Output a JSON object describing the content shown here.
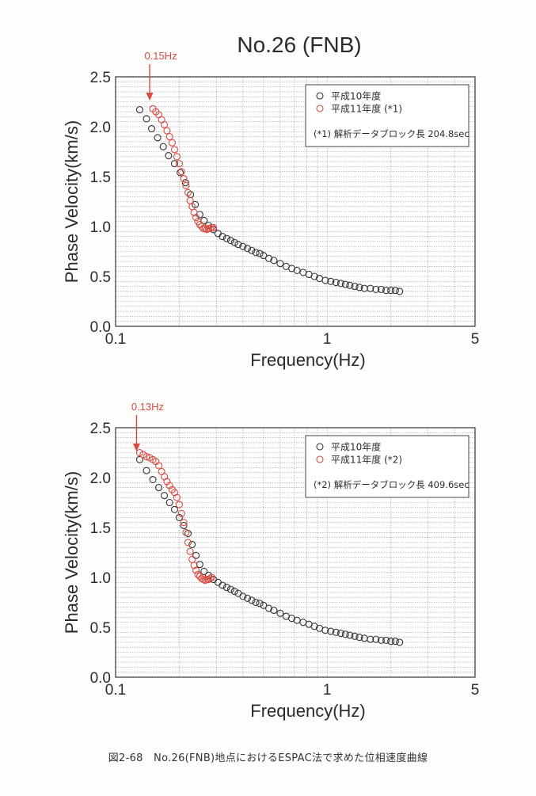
{
  "title": "No.26 (FNB)",
  "caption": "図2-68　No.26(FNB)地点におけるESPAC法で求めた位相速度曲線",
  "colors": {
    "series_1": "#333333",
    "series_2": "#d94a3f",
    "arrow": "#d94a3f"
  },
  "chart_data": [
    {
      "type": "scatter",
      "xscale": "log",
      "xlim": [
        0.1,
        5
      ],
      "ylim": [
        0.0,
        2.5
      ],
      "xlabel": "Frequency(Hz)",
      "ylabel": "Phase Velocity(km/s)",
      "xticks": [
        0.1,
        1,
        5
      ],
      "xtick_labels": [
        "0.1",
        "1",
        "5"
      ],
      "yticks": [
        0.0,
        0.5,
        1.0,
        1.5,
        2.0,
        2.5
      ],
      "ytick_labels": [
        "0.0",
        "0.5",
        "1.0",
        "1.5",
        "2.0",
        "2.5"
      ],
      "grid": true,
      "legend_position": "top-right",
      "note": "(*1) 解析データブロック長 204.8sec",
      "annotation": {
        "text": "0.15Hz",
        "x": 0.15
      },
      "series": [
        {
          "name": "平成10年度",
          "color": "#333333",
          "x": [
            0.13,
            0.14,
            0.148,
            0.158,
            0.168,
            0.178,
            0.19,
            0.202,
            0.214,
            0.226,
            0.238,
            0.25,
            0.262,
            0.275,
            0.29,
            0.305,
            0.32,
            0.335,
            0.35,
            0.365,
            0.38,
            0.4,
            0.42,
            0.44,
            0.46,
            0.48,
            0.5,
            0.53,
            0.56,
            0.6,
            0.64,
            0.68,
            0.72,
            0.77,
            0.82,
            0.87,
            0.92,
            0.98,
            1.04,
            1.1,
            1.16,
            1.22,
            1.28,
            1.35,
            1.42,
            1.5,
            1.6,
            1.7,
            1.8,
            1.9,
            2.0,
            2.1,
            2.2
          ],
          "y": [
            2.17,
            2.08,
            1.98,
            1.89,
            1.8,
            1.71,
            1.63,
            1.54,
            1.44,
            1.32,
            1.22,
            1.12,
            1.06,
            1.01,
            0.97,
            0.93,
            0.9,
            0.88,
            0.86,
            0.84,
            0.82,
            0.8,
            0.78,
            0.76,
            0.74,
            0.73,
            0.71,
            0.68,
            0.66,
            0.63,
            0.6,
            0.58,
            0.56,
            0.54,
            0.52,
            0.5,
            0.48,
            0.46,
            0.45,
            0.44,
            0.43,
            0.42,
            0.41,
            0.4,
            0.39,
            0.38,
            0.38,
            0.37,
            0.37,
            0.36,
            0.36,
            0.36,
            0.35
          ]
        },
        {
          "name": "平成11年度 (*1)",
          "color": "#d94a3f",
          "x": [
            0.15,
            0.155,
            0.16,
            0.165,
            0.17,
            0.175,
            0.18,
            0.185,
            0.19,
            0.195,
            0.2,
            0.205,
            0.21,
            0.215,
            0.22,
            0.225,
            0.23,
            0.235,
            0.24,
            0.245,
            0.25,
            0.255,
            0.26,
            0.265,
            0.27,
            0.275,
            0.28,
            0.285,
            0.29
          ],
          "y": [
            2.18,
            2.15,
            2.12,
            2.07,
            2.02,
            1.96,
            1.9,
            1.84,
            1.77,
            1.7,
            1.63,
            1.55,
            1.48,
            1.41,
            1.34,
            1.26,
            1.2,
            1.14,
            1.09,
            1.05,
            1.02,
            1.0,
            0.98,
            0.98,
            0.97,
            0.98,
            0.98,
            0.99,
            0.99
          ]
        }
      ]
    },
    {
      "type": "scatter",
      "xscale": "log",
      "xlim": [
        0.1,
        5
      ],
      "ylim": [
        0.0,
        2.5
      ],
      "xlabel": "Frequency(Hz)",
      "ylabel": "Phase Velocity(km/s)",
      "xticks": [
        0.1,
        1,
        5
      ],
      "xtick_labels": [
        "0.1",
        "1",
        "5"
      ],
      "yticks": [
        0.0,
        0.5,
        1.0,
        1.5,
        2.0,
        2.5
      ],
      "ytick_labels": [
        "0.0",
        "0.5",
        "1.0",
        "1.5",
        "2.0",
        "2.5"
      ],
      "grid": true,
      "legend_position": "top-right",
      "note": "(*2) 解析データブロック長 409.6sec",
      "annotation": {
        "text": "0.13Hz",
        "x": 0.13
      },
      "series": [
        {
          "name": "平成10年度",
          "color": "#333333",
          "x": [
            0.13,
            0.14,
            0.15,
            0.16,
            0.17,
            0.18,
            0.19,
            0.2,
            0.21,
            0.22,
            0.23,
            0.24,
            0.25,
            0.262,
            0.275,
            0.29,
            0.305,
            0.32,
            0.335,
            0.35,
            0.365,
            0.38,
            0.4,
            0.42,
            0.44,
            0.46,
            0.48,
            0.5,
            0.53,
            0.56,
            0.6,
            0.64,
            0.68,
            0.72,
            0.77,
            0.82,
            0.87,
            0.92,
            0.98,
            1.04,
            1.1,
            1.16,
            1.22,
            1.28,
            1.35,
            1.42,
            1.5,
            1.6,
            1.7,
            1.8,
            1.9,
            2.0,
            2.1,
            2.2
          ],
          "y": [
            2.18,
            2.07,
            1.98,
            1.9,
            1.82,
            1.75,
            1.68,
            1.6,
            1.52,
            1.44,
            1.33,
            1.22,
            1.13,
            1.06,
            1.02,
            0.98,
            0.95,
            0.92,
            0.9,
            0.88,
            0.86,
            0.84,
            0.81,
            0.79,
            0.77,
            0.75,
            0.74,
            0.72,
            0.69,
            0.67,
            0.64,
            0.61,
            0.59,
            0.57,
            0.55,
            0.53,
            0.51,
            0.49,
            0.47,
            0.46,
            0.45,
            0.44,
            0.43,
            0.42,
            0.41,
            0.4,
            0.39,
            0.38,
            0.38,
            0.37,
            0.37,
            0.36,
            0.36,
            0.35
          ]
        },
        {
          "name": "平成11年度 (*2)",
          "color": "#d94a3f",
          "x": [
            0.13,
            0.135,
            0.14,
            0.145,
            0.15,
            0.155,
            0.16,
            0.165,
            0.17,
            0.175,
            0.18,
            0.185,
            0.19,
            0.195,
            0.2,
            0.205,
            0.21,
            0.215,
            0.22,
            0.225,
            0.23,
            0.235,
            0.24,
            0.245,
            0.25,
            0.255,
            0.26,
            0.265,
            0.27,
            0.275,
            0.28,
            0.285
          ],
          "y": [
            2.25,
            2.23,
            2.21,
            2.2,
            2.18,
            2.16,
            2.12,
            2.06,
            2.01,
            1.96,
            1.92,
            1.88,
            1.85,
            1.8,
            1.73,
            1.64,
            1.55,
            1.45,
            1.35,
            1.26,
            1.18,
            1.12,
            1.07,
            1.03,
            1.01,
            0.99,
            0.98,
            0.97,
            0.98,
            0.98,
            0.99,
            1.0
          ]
        }
      ]
    }
  ]
}
